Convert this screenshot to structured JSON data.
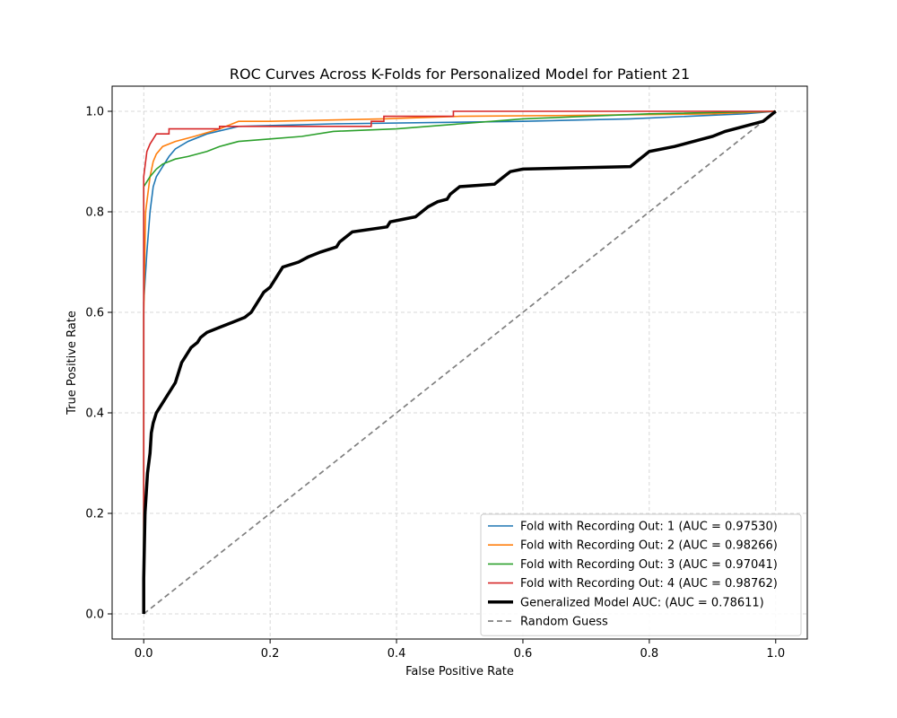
{
  "chart_data": {
    "type": "line",
    "title": "ROC Curves Across K-Folds for Personalized Model for Patient 21",
    "xlabel": "False Positive Rate",
    "ylabel": "True Positive Rate",
    "xlim": [
      -0.05,
      1.05
    ],
    "ylim": [
      -0.05,
      1.05
    ],
    "xticks": [
      0.0,
      0.2,
      0.4,
      0.6,
      0.8,
      1.0
    ],
    "yticks": [
      0.0,
      0.2,
      0.4,
      0.6,
      0.8,
      1.0
    ],
    "xtick_labels": [
      "0.0",
      "0.2",
      "0.4",
      "0.6",
      "0.8",
      "1.0"
    ],
    "ytick_labels": [
      "0.0",
      "0.2",
      "0.4",
      "0.6",
      "0.8",
      "1.0"
    ],
    "grid": true,
    "legend_position": "lower-right",
    "series": [
      {
        "name": "Fold with Recording Out: 1 (AUC = 0.97530)",
        "color": "#1f77b4",
        "style": "solid",
        "points": [
          [
            0,
            0
          ],
          [
            0,
            0.62
          ],
          [
            0.005,
            0.72
          ],
          [
            0.01,
            0.8
          ],
          [
            0.015,
            0.85
          ],
          [
            0.02,
            0.87
          ],
          [
            0.03,
            0.89
          ],
          [
            0.04,
            0.91
          ],
          [
            0.05,
            0.925
          ],
          [
            0.07,
            0.94
          ],
          [
            0.1,
            0.955
          ],
          [
            0.15,
            0.97
          ],
          [
            0.3,
            0.975
          ],
          [
            0.6,
            0.98
          ],
          [
            0.77,
            0.985
          ],
          [
            0.95,
            0.995
          ],
          [
            1,
            1
          ]
        ]
      },
      {
        "name": "Fold with Recording Out: 2 (AUC = 0.98266)",
        "color": "#ff7f0e",
        "style": "solid",
        "points": [
          [
            0,
            0
          ],
          [
            0,
            0.6
          ],
          [
            0.003,
            0.8
          ],
          [
            0.01,
            0.87
          ],
          [
            0.015,
            0.9
          ],
          [
            0.02,
            0.915
          ],
          [
            0.03,
            0.93
          ],
          [
            0.05,
            0.94
          ],
          [
            0.08,
            0.95
          ],
          [
            0.12,
            0.965
          ],
          [
            0.15,
            0.98
          ],
          [
            0.2,
            0.98
          ],
          [
            0.38,
            0.985
          ],
          [
            0.5,
            0.99
          ],
          [
            0.7,
            0.992
          ],
          [
            0.9,
            0.995
          ],
          [
            1,
            1
          ]
        ]
      },
      {
        "name": "Fold with Recording Out: 3 (AUC = 0.97041)",
        "color": "#2ca02c",
        "style": "solid",
        "points": [
          [
            0,
            0
          ],
          [
            0,
            0.85
          ],
          [
            0.005,
            0.86
          ],
          [
            0.01,
            0.87
          ],
          [
            0.02,
            0.885
          ],
          [
            0.03,
            0.895
          ],
          [
            0.05,
            0.905
          ],
          [
            0.07,
            0.91
          ],
          [
            0.1,
            0.92
          ],
          [
            0.12,
            0.93
          ],
          [
            0.15,
            0.94
          ],
          [
            0.2,
            0.945
          ],
          [
            0.25,
            0.95
          ],
          [
            0.3,
            0.96
          ],
          [
            0.4,
            0.965
          ],
          [
            0.5,
            0.975
          ],
          [
            0.6,
            0.985
          ],
          [
            0.7,
            0.99
          ],
          [
            0.8,
            0.995
          ],
          [
            1,
            1
          ]
        ]
      },
      {
        "name": "Fold with Recording Out: 4 (AUC = 0.98762)",
        "color": "#d62728",
        "style": "solid",
        "points": [
          [
            0,
            0
          ],
          [
            0,
            0.87
          ],
          [
            0.005,
            0.92
          ],
          [
            0.01,
            0.935
          ],
          [
            0.015,
            0.945
          ],
          [
            0.02,
            0.955
          ],
          [
            0.04,
            0.955
          ],
          [
            0.04,
            0.965
          ],
          [
            0.12,
            0.965
          ],
          [
            0.12,
            0.97
          ],
          [
            0.36,
            0.97
          ],
          [
            0.36,
            0.98
          ],
          [
            0.38,
            0.98
          ],
          [
            0.38,
            0.99
          ],
          [
            0.49,
            0.99
          ],
          [
            0.49,
            1.0
          ],
          [
            1,
            1
          ]
        ]
      },
      {
        "name": "Generalized Model AUC: (AUC = 0.78611)",
        "color": "#000000",
        "style": "thick",
        "points": [
          [
            0,
            0
          ],
          [
            0,
            0.07
          ],
          [
            0.002,
            0.2
          ],
          [
            0.004,
            0.24
          ],
          [
            0.006,
            0.28
          ],
          [
            0.01,
            0.32
          ],
          [
            0.012,
            0.36
          ],
          [
            0.015,
            0.38
          ],
          [
            0.02,
            0.4
          ],
          [
            0.025,
            0.41
          ],
          [
            0.03,
            0.42
          ],
          [
            0.035,
            0.43
          ],
          [
            0.045,
            0.45
          ],
          [
            0.05,
            0.46
          ],
          [
            0.055,
            0.48
          ],
          [
            0.06,
            0.5
          ],
          [
            0.065,
            0.51
          ],
          [
            0.07,
            0.52
          ],
          [
            0.075,
            0.53
          ],
          [
            0.085,
            0.54
          ],
          [
            0.09,
            0.55
          ],
          [
            0.1,
            0.56
          ],
          [
            0.12,
            0.57
          ],
          [
            0.14,
            0.58
          ],
          [
            0.16,
            0.59
          ],
          [
            0.17,
            0.6
          ],
          [
            0.175,
            0.61
          ],
          [
            0.18,
            0.62
          ],
          [
            0.185,
            0.63
          ],
          [
            0.19,
            0.64
          ],
          [
            0.2,
            0.65
          ],
          [
            0.205,
            0.66
          ],
          [
            0.21,
            0.67
          ],
          [
            0.215,
            0.68
          ],
          [
            0.22,
            0.69
          ],
          [
            0.245,
            0.7
          ],
          [
            0.26,
            0.71
          ],
          [
            0.28,
            0.72
          ],
          [
            0.305,
            0.73
          ],
          [
            0.31,
            0.74
          ],
          [
            0.32,
            0.75
          ],
          [
            0.33,
            0.76
          ],
          [
            0.385,
            0.77
          ],
          [
            0.39,
            0.78
          ],
          [
            0.41,
            0.785
          ],
          [
            0.43,
            0.79
          ],
          [
            0.44,
            0.8
          ],
          [
            0.45,
            0.81
          ],
          [
            0.465,
            0.82
          ],
          [
            0.48,
            0.825
          ],
          [
            0.485,
            0.835
          ],
          [
            0.49,
            0.84
          ],
          [
            0.5,
            0.85
          ],
          [
            0.555,
            0.855
          ],
          [
            0.56,
            0.86
          ],
          [
            0.57,
            0.87
          ],
          [
            0.58,
            0.88
          ],
          [
            0.6,
            0.885
          ],
          [
            0.77,
            0.89
          ],
          [
            0.78,
            0.9
          ],
          [
            0.79,
            0.91
          ],
          [
            0.8,
            0.92
          ],
          [
            0.84,
            0.93
          ],
          [
            0.87,
            0.94
          ],
          [
            0.9,
            0.95
          ],
          [
            0.92,
            0.96
          ],
          [
            0.95,
            0.97
          ],
          [
            0.98,
            0.98
          ],
          [
            0.99,
            0.99
          ],
          [
            1,
            1
          ]
        ]
      },
      {
        "name": "Random Guess",
        "color": "#808080",
        "style": "dashed",
        "points": [
          [
            0,
            0
          ],
          [
            1,
            1
          ]
        ]
      }
    ]
  }
}
